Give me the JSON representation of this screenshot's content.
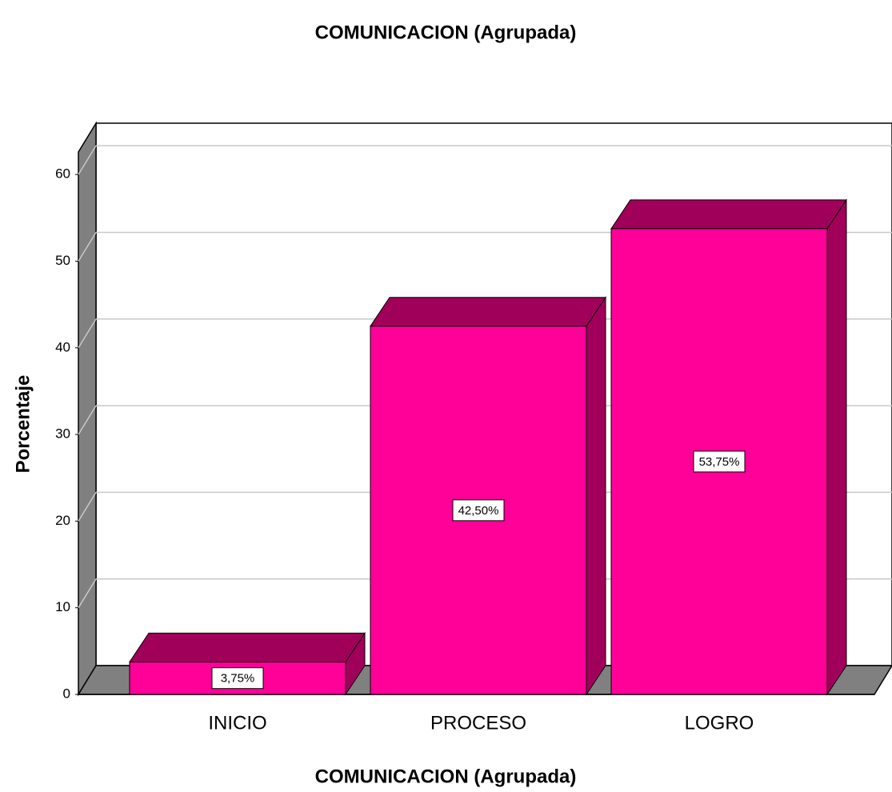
{
  "chart_data": {
    "type": "bar3d",
    "title": "COMUNICACION (Agrupada)",
    "x_label": "COMUNICACION (Agrupada)",
    "y_label": "Porcentaje",
    "categories": [
      "INICIO",
      "PROCESO",
      "LOGRO"
    ],
    "values": [
      3.75,
      42.5,
      53.75
    ],
    "value_labels": [
      "3,75%",
      "42,50%",
      "53,75%"
    ],
    "color": "#ff0099",
    "ylim": [
      0,
      62.6
    ],
    "yticks": [
      0,
      10,
      20,
      30,
      40,
      50,
      60
    ],
    "grid": true
  }
}
